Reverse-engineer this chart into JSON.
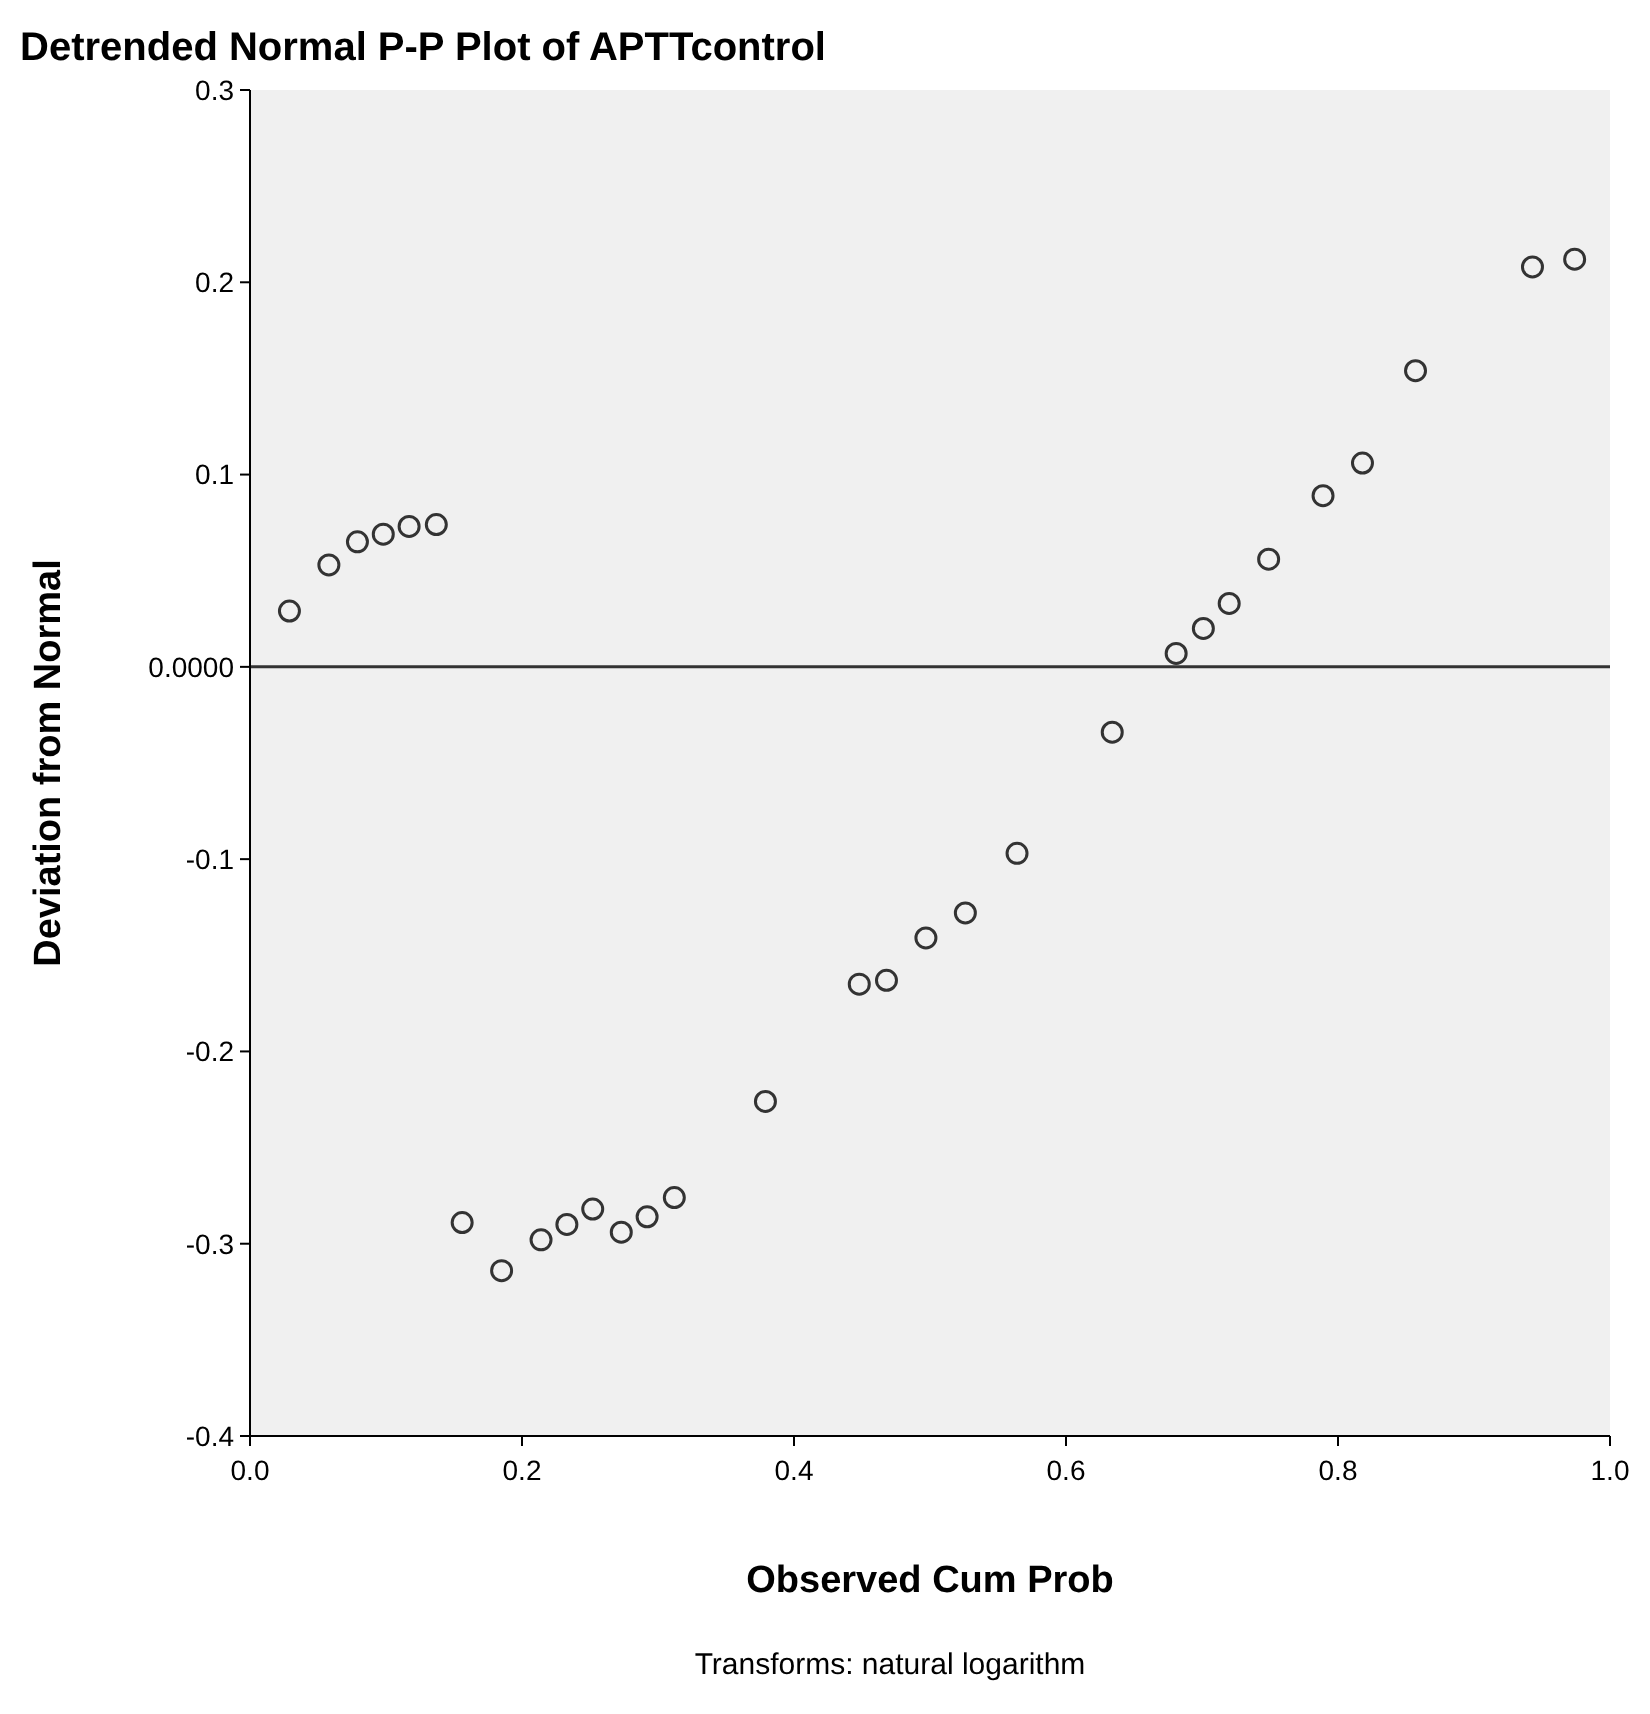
{
  "chart_data": {
    "type": "scatter",
    "title": "Detrended Normal P-P Plot of APTTcontrol",
    "xlabel": "Observed Cum Prob",
    "ylabel": "Deviation from Normal",
    "annotations": [
      "Transforms: natural logarithm"
    ],
    "x": [
      0.029,
      0.058,
      0.079,
      0.098,
      0.117,
      0.137,
      0.156,
      0.185,
      0.214,
      0.233,
      0.252,
      0.273,
      0.292,
      0.312,
      0.379,
      0.448,
      0.468,
      0.497,
      0.526,
      0.564,
      0.634,
      0.681,
      0.701,
      0.72,
      0.749,
      0.789,
      0.818,
      0.857,
      0.943,
      0.974
    ],
    "series": [
      {
        "color": "#333333",
        "values": [
          0.029,
          0.053,
          0.065,
          0.069,
          0.073,
          0.074,
          -0.289,
          -0.314,
          -0.298,
          -0.29,
          -0.282,
          -0.294,
          -0.286,
          -0.276,
          -0.226,
          -0.165,
          -0.163,
          -0.141,
          -0.128,
          -0.097,
          -0.034,
          0.007,
          0.02,
          0.033,
          0.056,
          0.089,
          0.106,
          0.154,
          0.208,
          0.212
        ]
      }
    ],
    "xlim": [
      0,
      1
    ],
    "xticks": [
      {
        "value": 0,
        "label": "0.0"
      },
      {
        "value": 0.2,
        "label": "0.2"
      },
      {
        "value": 0.4,
        "label": "0.4"
      },
      {
        "value": 0.6,
        "label": "0.6"
      },
      {
        "value": 0.8,
        "label": "0.8"
      },
      {
        "value": 1,
        "label": "1.0"
      }
    ],
    "ylim": [
      -0.4,
      0.3
    ],
    "yticks": [
      {
        "value": -0.4,
        "label": "-0.4"
      },
      {
        "value": -0.3,
        "label": "-0.3"
      },
      {
        "value": -0.2,
        "label": "-0.2"
      },
      {
        "value": -0.1,
        "label": "-0.1"
      },
      {
        "value": 0,
        "label": "0.0000"
      },
      {
        "value": 0.1,
        "label": "0.1"
      },
      {
        "value": 0.2,
        "label": "0.2"
      },
      {
        "value": 0.3,
        "label": "0.3"
      }
    ],
    "ref_lines": [
      {
        "axis": "y",
        "value": 0,
        "color": "#333333"
      }
    ],
    "marker": "circle",
    "grid": false
  }
}
